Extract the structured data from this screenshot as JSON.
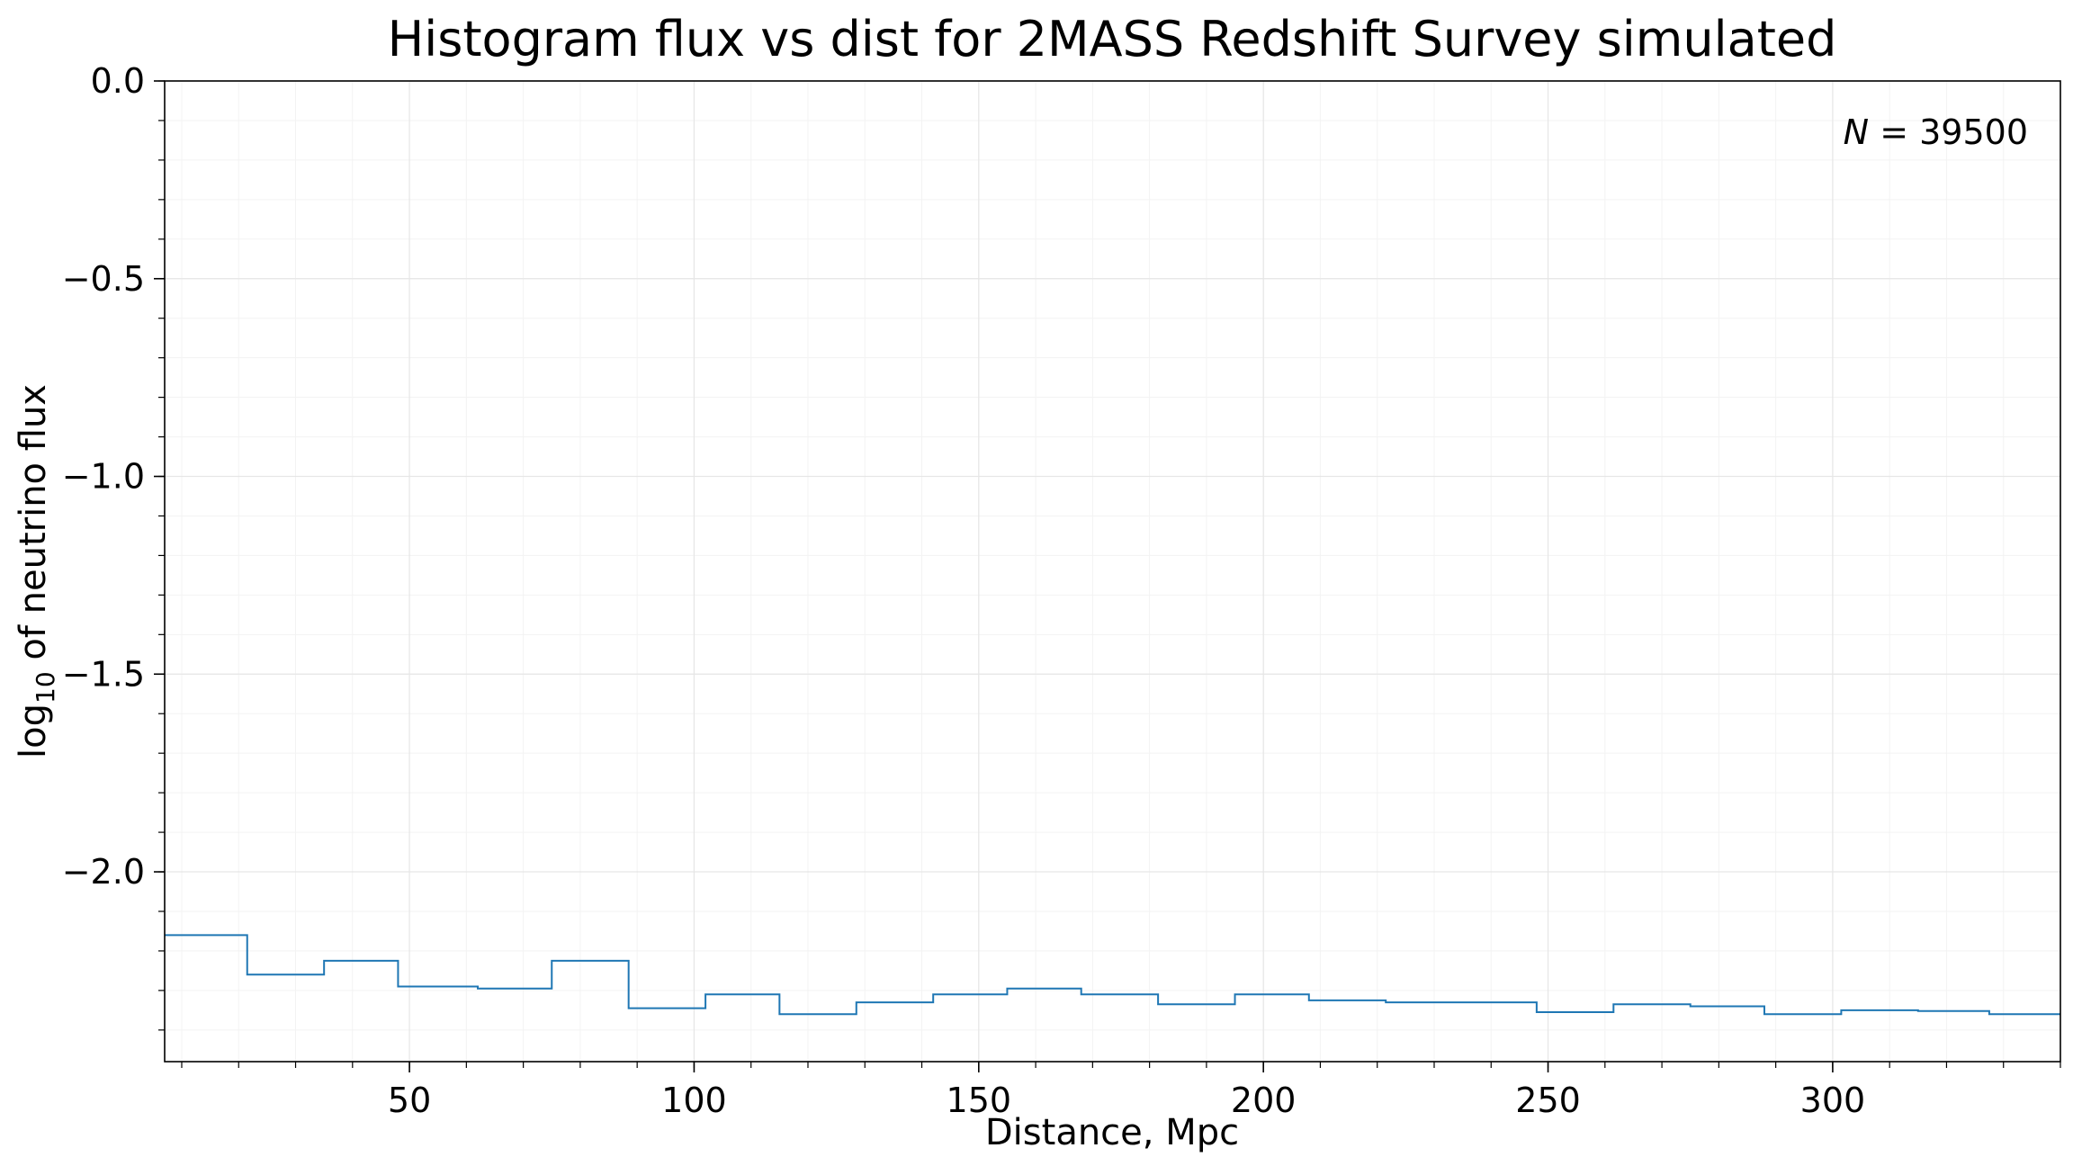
{
  "chart_data": {
    "type": "histogram-step",
    "title": "Histogram flux vs dist for 2MASS Redshift Survey simulated",
    "xlabel": "Distance, Mpc",
    "ylabel_main": "log",
    "ylabel_sub": "10",
    "ylabel_rest": " of neutrino flux",
    "annotation_var": "N",
    "annotation_value": " = 39500",
    "xlim": [
      7,
      340
    ],
    "ylim": [
      -2.48,
      0.0
    ],
    "xticks": [
      50,
      100,
      150,
      200,
      250,
      300
    ],
    "xtick_labels": [
      "50",
      "100",
      "150",
      "200",
      "250",
      "300"
    ],
    "yticks": [
      0.0,
      -0.5,
      -1.0,
      -1.5,
      -2.0
    ],
    "ytick_labels": [
      "0.0",
      "−0.5",
      "−1.0",
      "−1.5",
      "−2.0"
    ],
    "grid": true,
    "line_color": "#1f77b4",
    "bin_edges": [
      7,
      21.5,
      35,
      48,
      62,
      75,
      88.5,
      102,
      115,
      128.5,
      142,
      155,
      168,
      181.5,
      195,
      208,
      221.5,
      235,
      248,
      261.5,
      275,
      288,
      301.5,
      315,
      327.5,
      340
    ],
    "values": [
      -2.16,
      -2.26,
      -2.225,
      -2.29,
      -2.295,
      -2.225,
      -2.345,
      -2.31,
      -2.36,
      -2.33,
      -2.31,
      -2.295,
      -2.31,
      -2.335,
      -2.31,
      -2.325,
      -2.33,
      -2.33,
      -2.355,
      -2.335,
      -2.34,
      -2.36,
      -2.35,
      -2.352,
      -2.36
    ]
  }
}
